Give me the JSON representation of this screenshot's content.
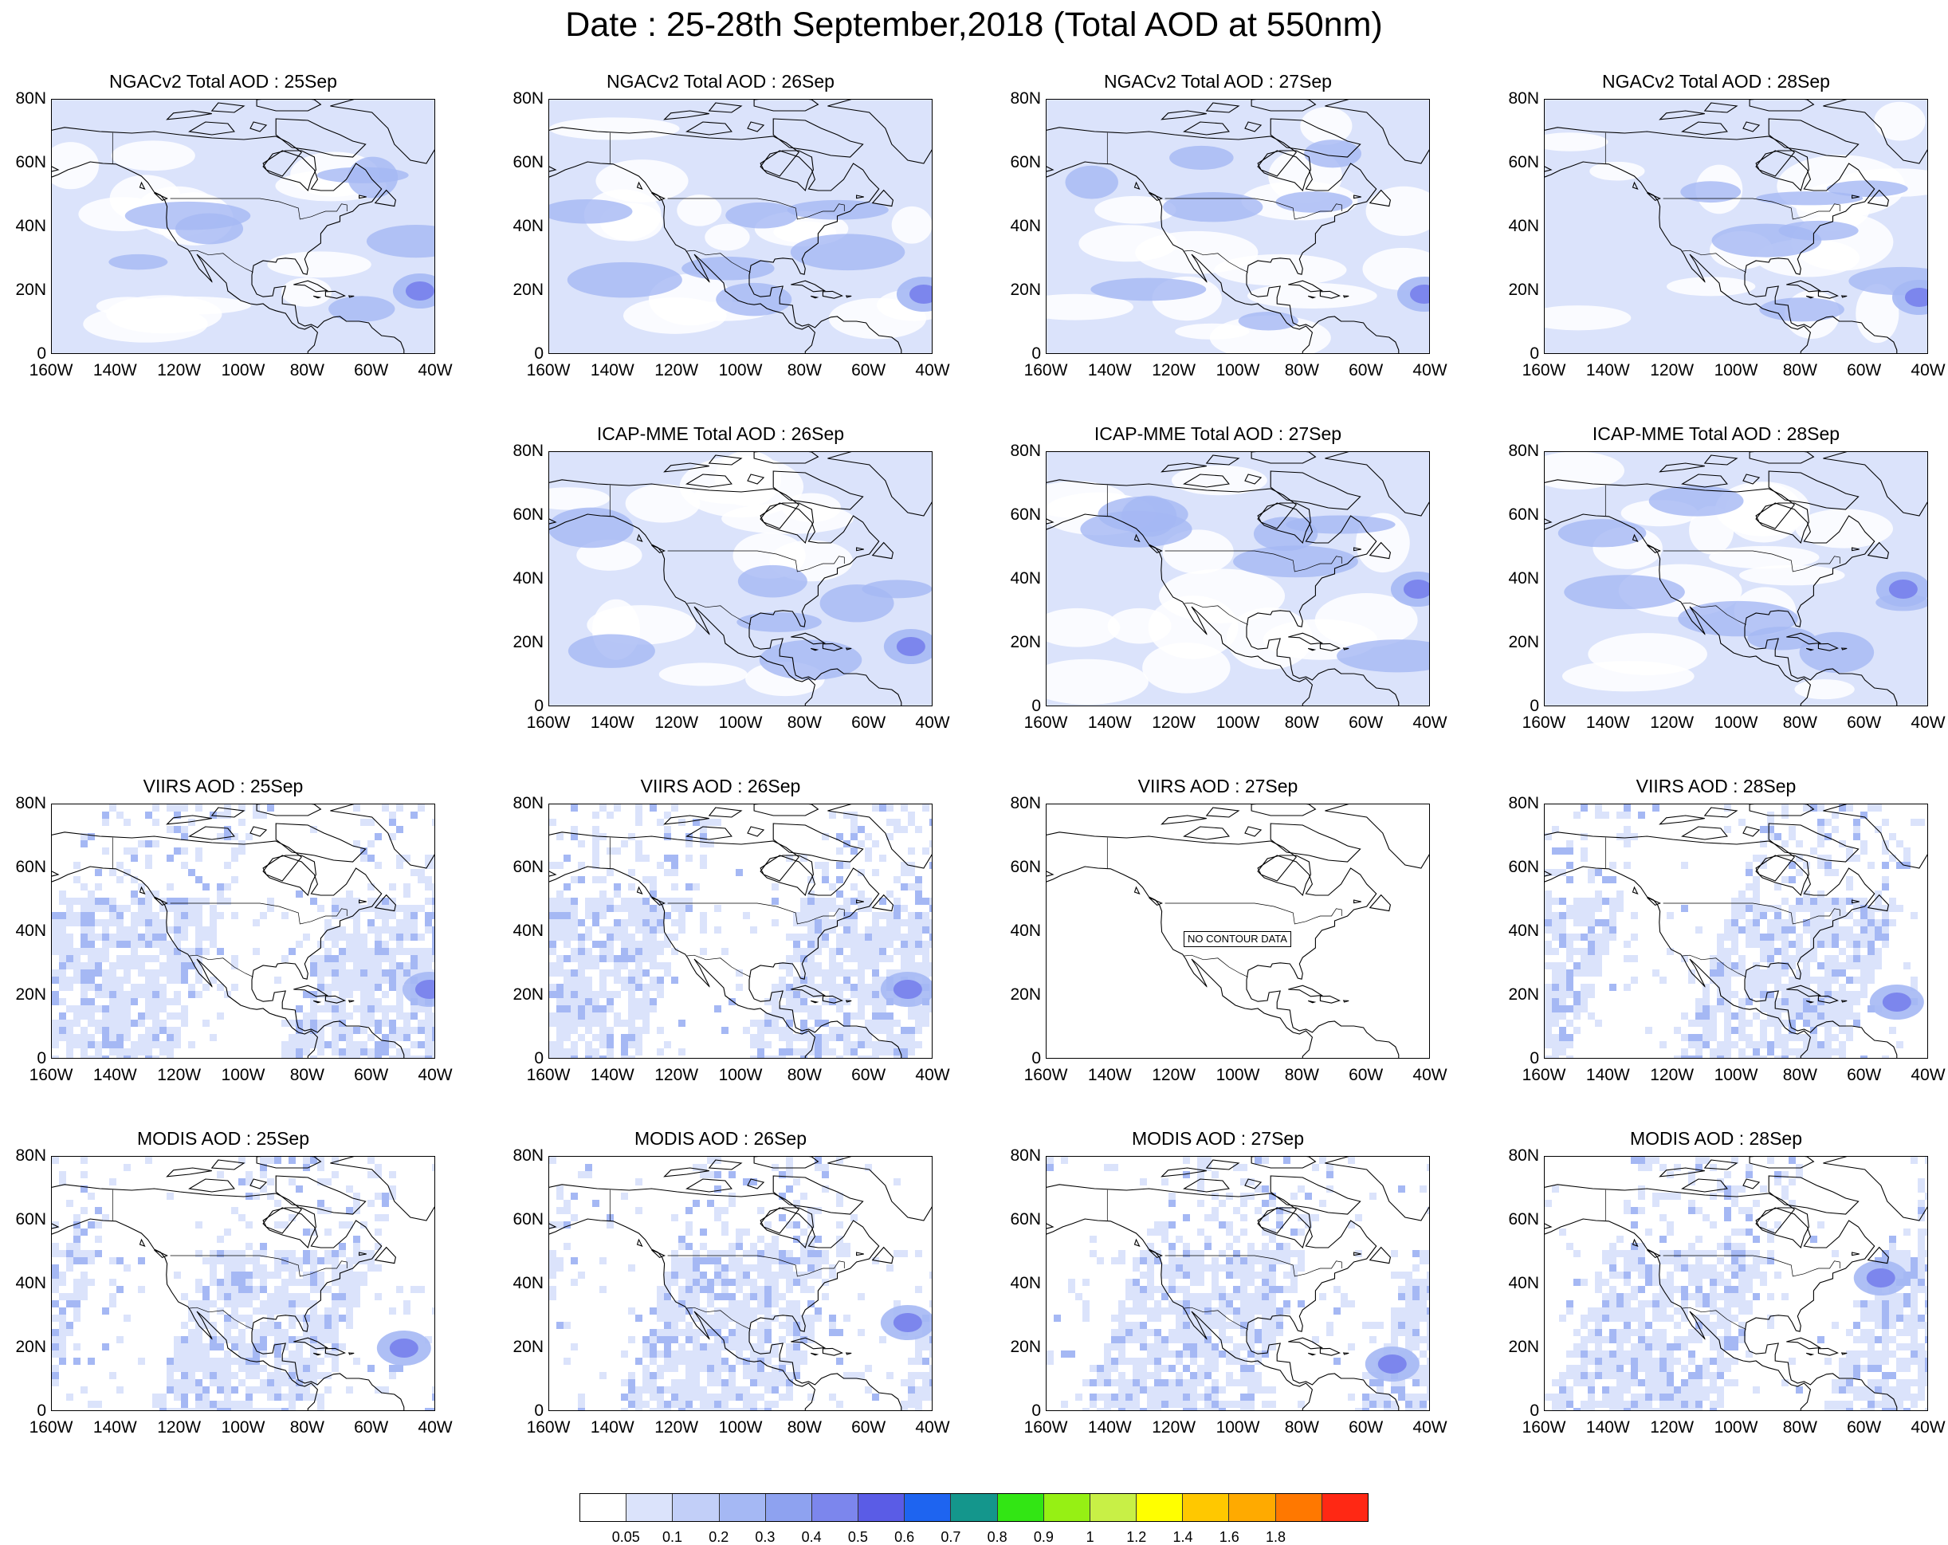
{
  "figure": {
    "title": "Date : 25-28th September,2018 (Total AOD at 550nm)"
  },
  "axes": {
    "lat_ticks": [
      "80N",
      "60N",
      "40N",
      "20N",
      "0"
    ],
    "lon_ticks": [
      "160W",
      "140W",
      "120W",
      "100W",
      "80W",
      "60W",
      "40W"
    ],
    "lat_range": [
      0,
      80
    ],
    "lon_range": [
      -160,
      -40
    ]
  },
  "panels": [
    {
      "title": "NGACv2 Total AOD : 25Sep",
      "row": 0,
      "col": 0,
      "plume": [
        -45,
        20
      ]
    },
    {
      "title": "NGACv2 Total AOD : 26Sep",
      "row": 0,
      "col": 1,
      "plume": [
        -43,
        19
      ]
    },
    {
      "title": "NGACv2 Total AOD : 27Sep",
      "row": 0,
      "col": 2,
      "plume": [
        -42,
        19
      ]
    },
    {
      "title": "NGACv2 Total AOD : 28Sep",
      "row": 0,
      "col": 3,
      "plume": [
        -43,
        18
      ]
    },
    {
      "title": "ICAP-MME Total AOD : 26Sep",
      "row": 1,
      "col": 1,
      "plume": [
        -47,
        19
      ]
    },
    {
      "title": "ICAP-MME Total AOD : 27Sep",
      "row": 1,
      "col": 2,
      "plume": [
        -44,
        37
      ]
    },
    {
      "title": "ICAP-MME Total AOD : 28Sep",
      "row": 1,
      "col": 3,
      "plume": [
        -48,
        37
      ]
    },
    {
      "title": "VIIRS AOD : 25Sep",
      "row": 2,
      "col": 0,
      "plume": [
        -42,
        22
      ]
    },
    {
      "title": "VIIRS AOD : 26Sep",
      "row": 2,
      "col": 1,
      "plume": [
        -48,
        22
      ]
    },
    {
      "title": "VIIRS AOD : 27Sep",
      "row": 2,
      "col": 2,
      "no_data_label": "NO CONTOUR DATA"
    },
    {
      "title": "VIIRS AOD : 28Sep",
      "row": 2,
      "col": 3,
      "plume": [
        -50,
        18
      ]
    },
    {
      "title": "MODIS AOD : 25Sep",
      "row": 3,
      "col": 0,
      "plume": [
        -50,
        20
      ]
    },
    {
      "title": "MODIS AOD : 26Sep",
      "row": 3,
      "col": 1,
      "plume": [
        -48,
        28
      ]
    },
    {
      "title": "MODIS AOD : 27Sep",
      "row": 3,
      "col": 2,
      "plume": [
        -52,
        15
      ]
    },
    {
      "title": "MODIS AOD : 28Sep",
      "row": 3,
      "col": 3,
      "plume": [
        -55,
        42
      ]
    }
  ],
  "colorbar": {
    "levels": [
      "0.05",
      "0.1",
      "0.2",
      "0.3",
      "0.4",
      "0.5",
      "0.6",
      "0.7",
      "0.8",
      "0.9",
      "1",
      "1.2",
      "1.4",
      "1.6",
      "1.8"
    ],
    "colors": [
      "#ffffff",
      "#dbe3fb",
      "#c2cff8",
      "#a5b8f4",
      "#8ea2f0",
      "#7c86ed",
      "#5a5ce6",
      "#1e64f0",
      "#14968c",
      "#32e614",
      "#96f014",
      "#c8f046",
      "#ffff00",
      "#ffc800",
      "#ffaa00",
      "#ff7800",
      "#ff2814"
    ]
  },
  "colors": {
    "aod_low": "#dbe3fb",
    "aod_mid": "#a5b8f4",
    "aod_high": "#7c86ed",
    "coast": "#000000"
  }
}
